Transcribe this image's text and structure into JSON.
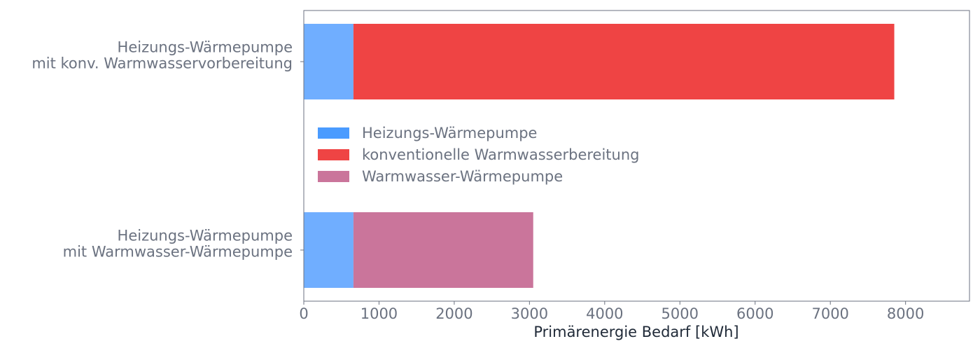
{
  "chart_data": {
    "type": "bar",
    "orientation": "horizontal",
    "stacked": true,
    "categories": [
      "Heizungs-Wärmepumpe\nmit konv. Warmwasservorbereitung",
      "Heizungs-Wärmepumpe\nmit Warmwasser-Wärmepumpe"
    ],
    "series": [
      {
        "name": "Heizungs-Wärmepumpe",
        "values": [
          660,
          660
        ],
        "color": "#70aeff",
        "legend_color": "#4a9bff"
      },
      {
        "name": "konventionelle Warmwasserbereitung",
        "values": [
          7190,
          0
        ],
        "color": "#ef4444",
        "legend_color": "#ef4444"
      },
      {
        "name": "Warmwasser-Wärmepumpe",
        "values": [
          0,
          2390
        ],
        "color": "#ca759b",
        "legend_color": "#ca759b"
      }
    ],
    "title": "",
    "xlabel": "Primärenergie Bedarf [kWh]",
    "ylabel": "",
    "xlim": [
      0,
      8850
    ],
    "xticks": [
      0,
      1000,
      2000,
      3000,
      4000,
      5000,
      6000,
      7000,
      8000
    ],
    "grid": false,
    "legend_position": "center-left"
  },
  "colors": {
    "text": "#6b7280",
    "label": "#1f2937",
    "axis": "#6b7280"
  }
}
